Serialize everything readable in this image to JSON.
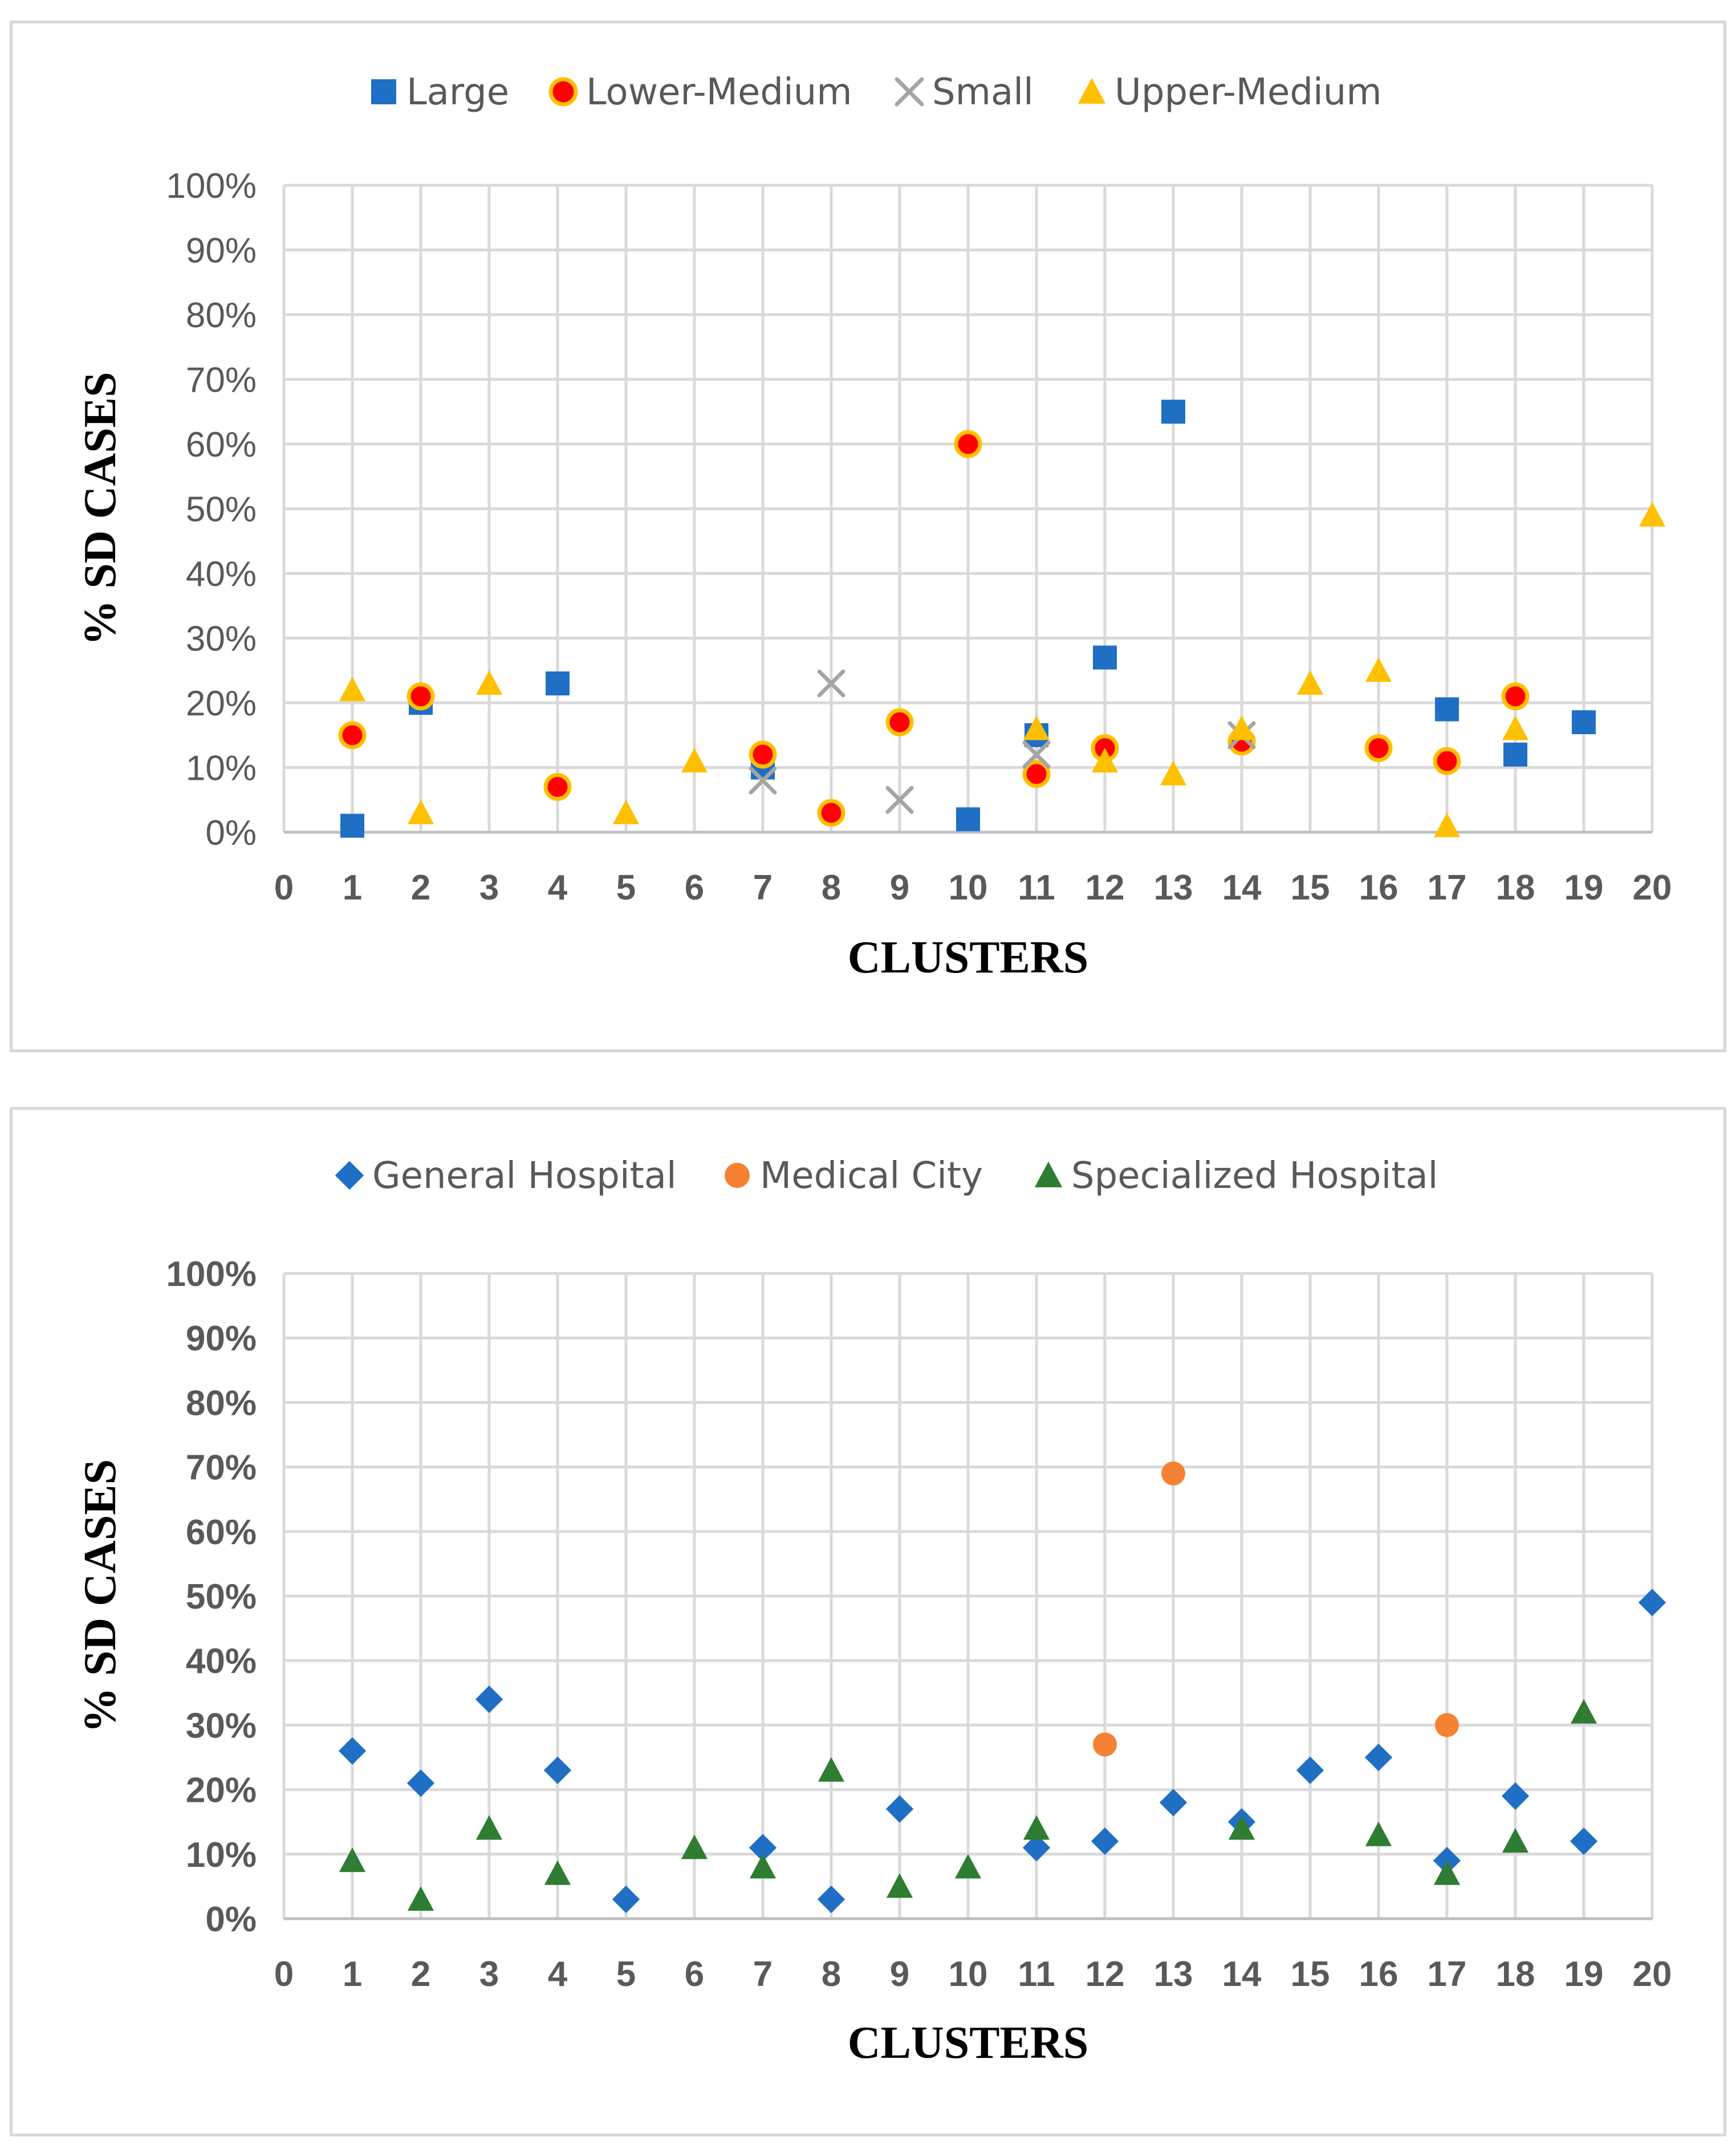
{
  "chart_data": [
    {
      "type": "scatter",
      "xlabel": "CLUSTERS",
      "ylabel": "% SD CASES",
      "xlim": [
        0,
        20
      ],
      "ylim": [
        0,
        1
      ],
      "x_ticks": [
        "0",
        "1",
        "2",
        "3",
        "4",
        "5",
        "6",
        "7",
        "8",
        "9",
        "10",
        "11",
        "12",
        "13",
        "14",
        "15",
        "16",
        "17",
        "18",
        "19",
        "20"
      ],
      "y_ticks": [
        "0%",
        "10%",
        "20%",
        "30%",
        "40%",
        "50%",
        "60%",
        "70%",
        "80%",
        "90%",
        "100%"
      ],
      "y_ticks_bold": false,
      "grid": true,
      "legend_position": "top",
      "series": [
        {
          "name": "Large",
          "marker": "square",
          "color": "#1f6fc5",
          "border": "#1f6fc5",
          "points": [
            [
              1,
              0.01
            ],
            [
              2,
              0.2
            ],
            [
              4,
              0.23
            ],
            [
              7,
              0.1
            ],
            [
              10,
              0.02
            ],
            [
              11,
              0.15
            ],
            [
              12,
              0.27
            ],
            [
              13,
              0.65
            ],
            [
              17,
              0.19
            ],
            [
              18,
              0.12
            ],
            [
              19,
              0.17
            ]
          ]
        },
        {
          "name": "Lower-Medium",
          "marker": "circle",
          "color": "#ff0000",
          "border": "#ffc000",
          "points": [
            [
              1,
              0.15
            ],
            [
              2,
              0.21
            ],
            [
              4,
              0.07
            ],
            [
              7,
              0.12
            ],
            [
              8,
              0.03
            ],
            [
              9,
              0.17
            ],
            [
              10,
              0.6
            ],
            [
              11,
              0.09
            ],
            [
              12,
              0.13
            ],
            [
              14,
              0.14
            ],
            [
              16,
              0.13
            ],
            [
              17,
              0.11
            ],
            [
              18,
              0.21
            ]
          ]
        },
        {
          "name": "Small",
          "marker": "x",
          "color": "#a5a5a5",
          "border": "#a5a5a5",
          "points": [
            [
              7,
              0.08
            ],
            [
              8,
              0.23
            ],
            [
              9,
              0.05
            ],
            [
              11,
              0.12
            ],
            [
              14,
              0.15
            ]
          ]
        },
        {
          "name": "Upper-Medium",
          "marker": "triangle",
          "color": "#ffc000",
          "border": "#ffc000",
          "points": [
            [
              1,
              0.22
            ],
            [
              2,
              0.03
            ],
            [
              3,
              0.23
            ],
            [
              5,
              0.03
            ],
            [
              6,
              0.11
            ],
            [
              11,
              0.16
            ],
            [
              12,
              0.11
            ],
            [
              13,
              0.09
            ],
            [
              14,
              0.16
            ],
            [
              15,
              0.23
            ],
            [
              16,
              0.25
            ],
            [
              17,
              0.01
            ],
            [
              18,
              0.16
            ],
            [
              20,
              0.49
            ]
          ]
        }
      ]
    },
    {
      "type": "scatter",
      "xlabel": "CLUSTERS",
      "ylabel": "% SD CASES",
      "xlim": [
        0,
        20
      ],
      "ylim": [
        0,
        1
      ],
      "x_ticks": [
        "0",
        "1",
        "2",
        "3",
        "4",
        "5",
        "6",
        "7",
        "8",
        "9",
        "10",
        "11",
        "12",
        "13",
        "14",
        "15",
        "16",
        "17",
        "18",
        "19",
        "20"
      ],
      "y_ticks": [
        "0%",
        "10%",
        "20%",
        "30%",
        "40%",
        "50%",
        "60%",
        "70%",
        "80%",
        "90%",
        "100%"
      ],
      "y_ticks_bold": true,
      "grid": true,
      "legend_position": "top",
      "series": [
        {
          "name": "General Hospital",
          "marker": "diamond",
          "color": "#1f6fc5",
          "border": "#1f6fc5",
          "points": [
            [
              1,
              0.26
            ],
            [
              2,
              0.21
            ],
            [
              3,
              0.34
            ],
            [
              4,
              0.23
            ],
            [
              5,
              0.03
            ],
            [
              7,
              0.11
            ],
            [
              8,
              0.03
            ],
            [
              9,
              0.17
            ],
            [
              11,
              0.11
            ],
            [
              12,
              0.12
            ],
            [
              13,
              0.18
            ],
            [
              14,
              0.15
            ],
            [
              15,
              0.23
            ],
            [
              16,
              0.25
            ],
            [
              17,
              0.09
            ],
            [
              18,
              0.19
            ],
            [
              19,
              0.12
            ],
            [
              20,
              0.49
            ]
          ]
        },
        {
          "name": "Medical City",
          "marker": "circle",
          "color": "#f58232",
          "border": "#f58232",
          "points": [
            [
              12,
              0.27
            ],
            [
              13,
              0.69
            ],
            [
              17,
              0.3
            ]
          ]
        },
        {
          "name": "Specialized Hospital",
          "marker": "triangle",
          "color": "#2e7d32",
          "border": "#2e7d32",
          "points": [
            [
              1,
              0.09
            ],
            [
              2,
              0.03
            ],
            [
              3,
              0.14
            ],
            [
              4,
              0.07
            ],
            [
              6,
              0.11
            ],
            [
              7,
              0.08
            ],
            [
              8,
              0.23
            ],
            [
              9,
              0.05
            ],
            [
              10,
              0.08
            ],
            [
              11,
              0.14
            ],
            [
              14,
              0.14
            ],
            [
              16,
              0.13
            ],
            [
              17,
              0.07
            ],
            [
              18,
              0.12
            ],
            [
              19,
              0.32
            ]
          ]
        }
      ]
    }
  ]
}
